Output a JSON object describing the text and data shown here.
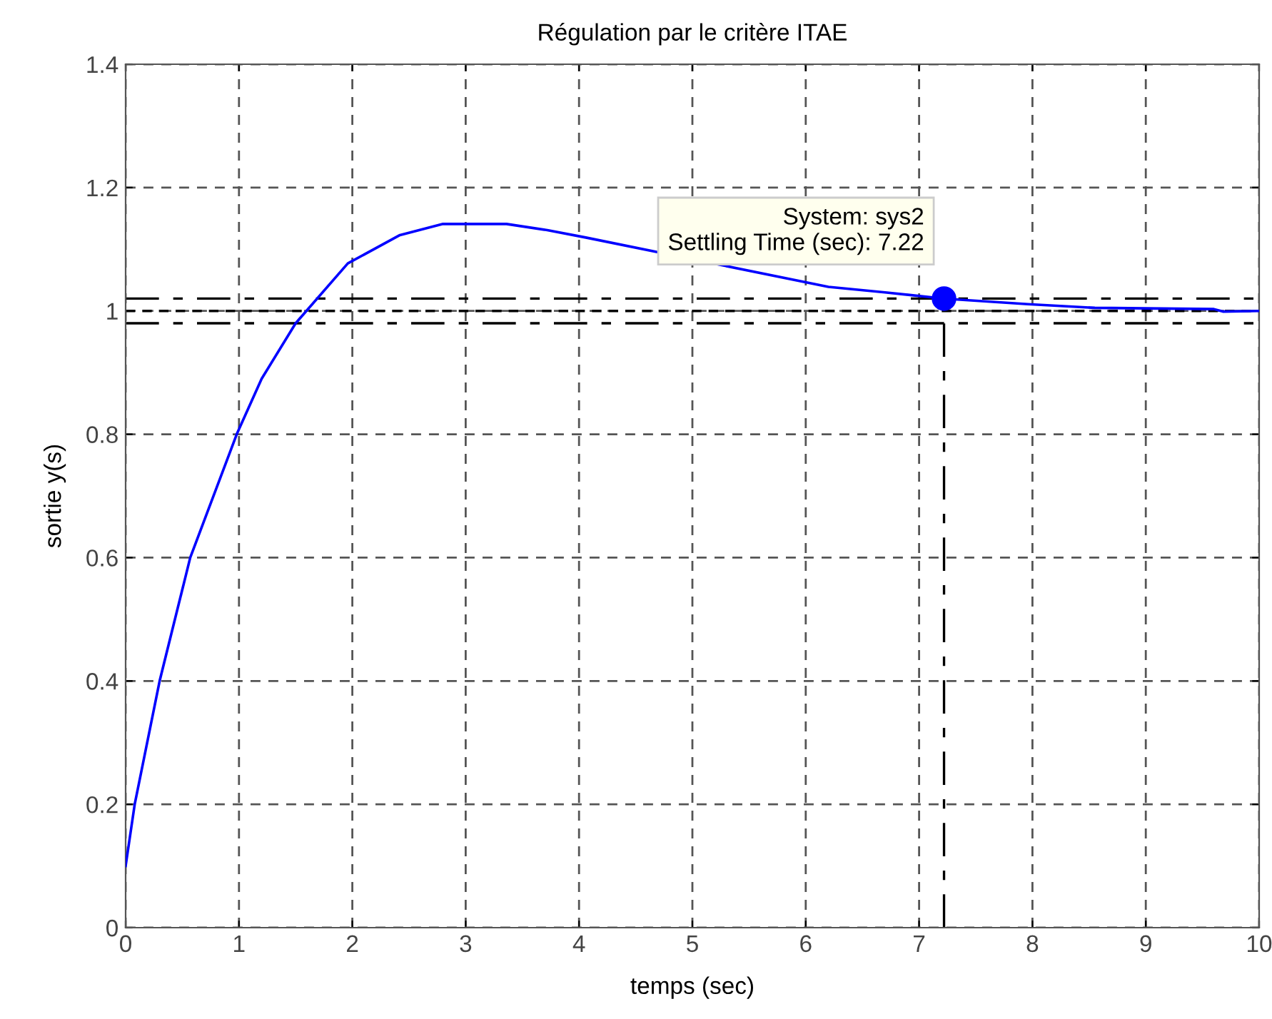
{
  "chart_data": {
    "type": "line",
    "title": "Régulation par le critère ITAE",
    "xlabel": "temps (sec)",
    "ylabel": "sortie y(s)",
    "xlim": [
      0,
      10
    ],
    "ylim": [
      0,
      1.4
    ],
    "xticks": [
      0,
      1,
      2,
      3,
      4,
      5,
      6,
      7,
      8,
      9,
      10
    ],
    "yticks": [
      0,
      0.2,
      0.4,
      0.6,
      0.8,
      1,
      1.2,
      1.4
    ],
    "grid": true,
    "series": [
      {
        "color": "#0000ff",
        "x": [
          0,
          0.08,
          0.3,
          0.57,
          0.98,
          1.2,
          1.5,
          1.96,
          2.42,
          2.8,
          3.36,
          3.72,
          4.06,
          6.2,
          6.7,
          7.22,
          7.96,
          8.55,
          9.6,
          9.68,
          10
        ],
        "values": [
          0.1,
          0.2,
          0.4,
          0.6,
          0.8,
          0.89,
          0.98,
          1.077,
          1.123,
          1.141,
          1.141,
          1.131,
          1.119,
          1.039,
          1.03,
          1.02,
          1.011,
          1.005,
          1.003,
          0.999,
          1.0
        ]
      },
      {
        "type": "scatter",
        "color": "#0000ff",
        "x": [
          7.22
        ],
        "values": [
          1.02
        ],
        "marker": "circle"
      }
    ],
    "ref_lines": [
      {
        "axis": "y",
        "value": 1.02,
        "color": "#000000",
        "line_style": "dashdot"
      },
      {
        "axis": "y",
        "value": 0.98,
        "color": "#000000",
        "line_style": "dashdot"
      },
      {
        "axis": "y",
        "value": 1,
        "color": "#000000",
        "line_style": "dashed"
      },
      {
        "axis": "x",
        "value": 7.22,
        "color": "#000000",
        "line_style": "dashdot"
      }
    ],
    "annotations": [
      {
        "text": "System: sys2\nSettling Time (sec): 7.22",
        "x": 7.22,
        "y": 1.02
      }
    ]
  }
}
